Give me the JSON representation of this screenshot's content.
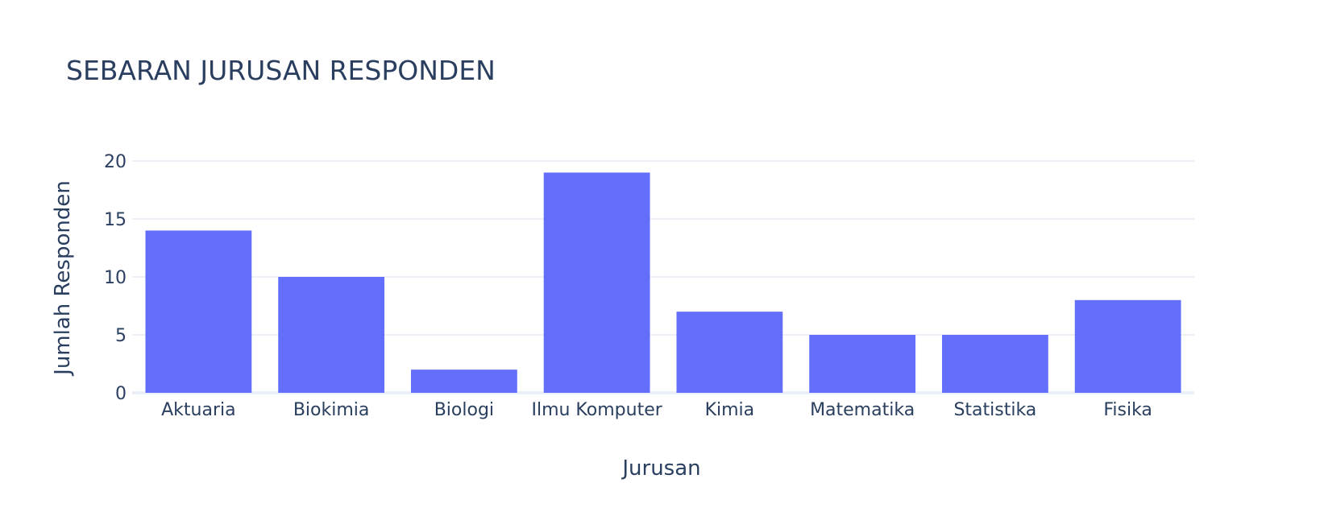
{
  "chart_data": {
    "type": "bar",
    "title": "SEBARAN JURUSAN RESPONDEN",
    "xlabel": "Jurusan",
    "ylabel": "Jumlah Responden",
    "categories": [
      "Aktuaria",
      "Biokimia",
      "Biologi",
      "Ilmu Komputer",
      "Kimia",
      "Matematika",
      "Statistika",
      "Fisika"
    ],
    "values": [
      14,
      10,
      2,
      19,
      7,
      5,
      5,
      8
    ],
    "ylim": [
      0,
      20
    ],
    "yticks": [
      0,
      5,
      10,
      15,
      20
    ],
    "grid": true,
    "legend": "none",
    "bar_color": "#636efa"
  }
}
